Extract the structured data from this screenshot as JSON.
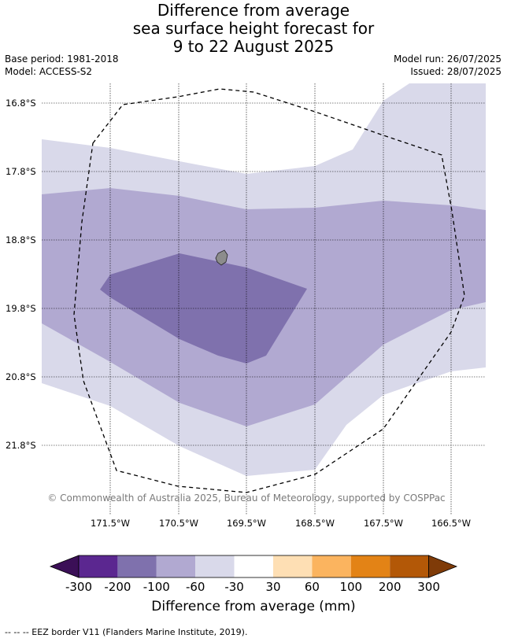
{
  "title": {
    "line1": "Difference from average",
    "line2": "sea surface height forecast for",
    "line3": "9 to 22 August 2025"
  },
  "meta": {
    "base_period": "Base period: 1981-2018",
    "model": "Model: ACCESS-S2",
    "model_run": "Model run: 26/07/2025",
    "issued": "Issued: 28/07/2025"
  },
  "map": {
    "lat_labels": [
      "16.8°S",
      "17.8°S",
      "18.8°S",
      "19.8°S",
      "20.8°S",
      "21.8°S"
    ],
    "lon_labels": [
      "171.5°W",
      "170.5°W",
      "169.5°W",
      "168.5°W",
      "167.5°W",
      "166.5°W"
    ],
    "copyright": "© Commonwealth of Australia 2025, Bureau of Meteorology, supported by COSPPac",
    "colors": {
      "lightest_purple": "#d9d9ea",
      "light_purple": "#b1a9d1",
      "mid_purple": "#7f71ad",
      "land": "#8c8c8c"
    }
  },
  "colorbar": {
    "ticks": [
      "-300",
      "-200",
      "-100",
      "-60",
      "-30",
      "30",
      "60",
      "100",
      "200",
      "300"
    ],
    "colors": [
      "#3b0f57",
      "#5b2790",
      "#7f71ad",
      "#b1a9d1",
      "#d9d9ea",
      "#ffffff",
      "#fedfb4",
      "#fbb45f",
      "#e38316",
      "#b35807",
      "#7f3b08"
    ],
    "label": "Difference from average (mm)"
  },
  "footer": {
    "eez_note": "--  --  -- EEZ border V11 (Flanders Marine Institute, 2019)."
  }
}
